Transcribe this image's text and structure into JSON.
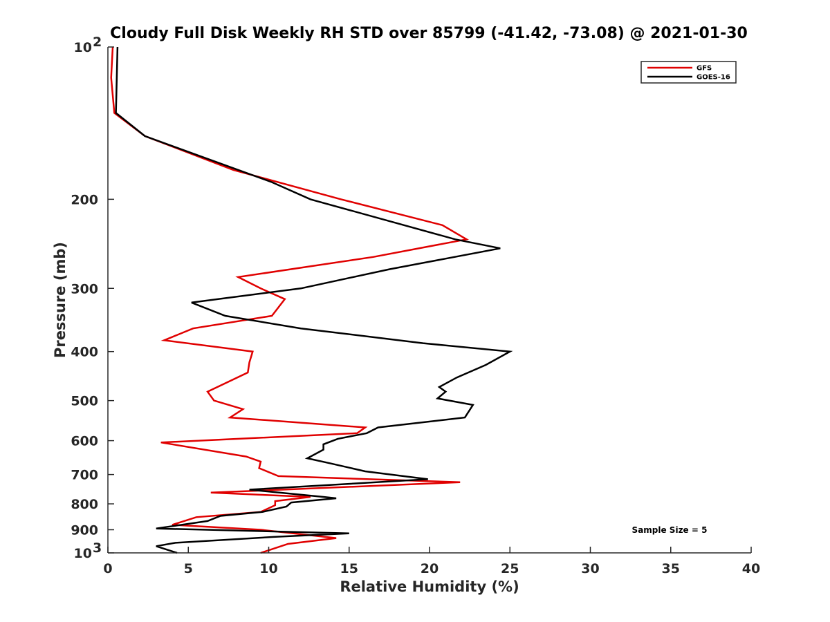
{
  "chart_data": {
    "type": "line",
    "title": "Cloudy Full Disk Weekly RH STD over 85799 (-41.42, -73.08) @ 2021-01-30",
    "xlabel": "Relative Humidity (%)",
    "ylabel": "Pressure (mb)",
    "xlim": [
      0,
      40
    ],
    "ylim": [
      100,
      1000
    ],
    "yscale": "log",
    "y_reversed": true,
    "grid": false,
    "legend_position": "top-right",
    "annotation": "Sample Size = 5",
    "x_ticks": [
      "0",
      "5",
      "10",
      "15",
      "20",
      "25",
      "30",
      "35",
      "40"
    ],
    "y_ticks": [
      {
        "value": 100,
        "label": "10",
        "sup": "2"
      },
      {
        "value": 200,
        "label": "200",
        "sup": ""
      },
      {
        "value": 300,
        "label": "300",
        "sup": ""
      },
      {
        "value": 400,
        "label": "400",
        "sup": ""
      },
      {
        "value": 500,
        "label": "500",
        "sup": ""
      },
      {
        "value": 600,
        "label": "600",
        "sup": ""
      },
      {
        "value": 700,
        "label": "700",
        "sup": ""
      },
      {
        "value": 800,
        "label": "800",
        "sup": ""
      },
      {
        "value": 900,
        "label": "900",
        "sup": ""
      },
      {
        "value": 1000,
        "label": "10",
        "sup": "3"
      }
    ],
    "series": [
      {
        "name": "GFS",
        "color": "#e00000",
        "points": [
          [
            0.3,
            100
          ],
          [
            0.2,
            115
          ],
          [
            0.4,
            135
          ],
          [
            2.3,
            150
          ],
          [
            7.8,
            175
          ],
          [
            14.5,
            200
          ],
          [
            20.8,
            225
          ],
          [
            22.3,
            240
          ],
          [
            16.5,
            260
          ],
          [
            8.1,
            285
          ],
          [
            9.5,
            300
          ],
          [
            11.0,
            315
          ],
          [
            10.2,
            340
          ],
          [
            5.3,
            360
          ],
          [
            3.5,
            380
          ],
          [
            9.0,
            400
          ],
          [
            8.8,
            420
          ],
          [
            8.7,
            440
          ],
          [
            6.2,
            480
          ],
          [
            6.6,
            500
          ],
          [
            8.4,
            520
          ],
          [
            7.6,
            540
          ],
          [
            16.0,
            565
          ],
          [
            15.5,
            580
          ],
          [
            3.3,
            605
          ],
          [
            8.6,
            645
          ],
          [
            9.5,
            660
          ],
          [
            9.4,
            680
          ],
          [
            10.6,
            705
          ],
          [
            21.9,
            725
          ],
          [
            6.4,
            760
          ],
          [
            12.6,
            775
          ],
          [
            10.4,
            790
          ],
          [
            10.4,
            805
          ],
          [
            9.5,
            830
          ],
          [
            5.5,
            850
          ],
          [
            4.0,
            880
          ],
          [
            9.5,
            900
          ],
          [
            14.2,
            935
          ],
          [
            11.2,
            960
          ],
          [
            9.5,
            1000
          ]
        ]
      },
      {
        "name": "GOES-16",
        "color": "#000000",
        "points": [
          [
            0.6,
            100
          ],
          [
            0.5,
            135
          ],
          [
            2.3,
            150
          ],
          [
            10.2,
            185
          ],
          [
            12.6,
            200
          ],
          [
            21.6,
            240
          ],
          [
            24.4,
            250
          ],
          [
            17.5,
            275
          ],
          [
            12.0,
            300
          ],
          [
            5.2,
            320
          ],
          [
            7.3,
            340
          ],
          [
            12.0,
            360
          ],
          [
            19.6,
            385
          ],
          [
            25.0,
            400
          ],
          [
            23.5,
            425
          ],
          [
            21.7,
            450
          ],
          [
            20.6,
            470
          ],
          [
            21.0,
            480
          ],
          [
            20.5,
            495
          ],
          [
            22.7,
            510
          ],
          [
            22.2,
            540
          ],
          [
            16.8,
            565
          ],
          [
            16.1,
            580
          ],
          [
            14.3,
            595
          ],
          [
            13.4,
            610
          ],
          [
            13.4,
            625
          ],
          [
            12.4,
            650
          ],
          [
            13.8,
            665
          ],
          [
            16.0,
            690
          ],
          [
            19.9,
            715
          ],
          [
            8.8,
            750
          ],
          [
            13.4,
            775
          ],
          [
            14.2,
            780
          ],
          [
            11.4,
            795
          ],
          [
            11.1,
            810
          ],
          [
            9.6,
            830
          ],
          [
            7.0,
            845
          ],
          [
            6.2,
            865
          ],
          [
            3.0,
            895
          ],
          [
            15.0,
            915
          ],
          [
            10.3,
            930
          ],
          [
            4.2,
            955
          ],
          [
            3.0,
            970
          ],
          [
            4.3,
            1000
          ]
        ]
      }
    ]
  }
}
